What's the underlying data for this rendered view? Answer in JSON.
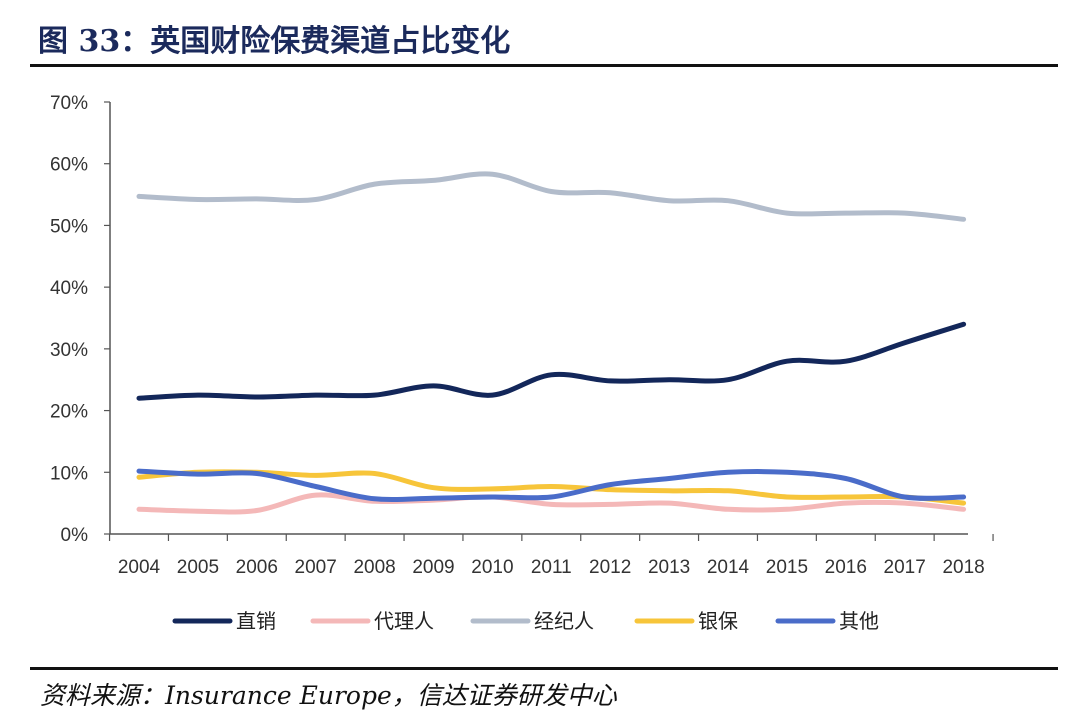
{
  "header": {
    "title": "图 33：英国财险保费渠道占比变化"
  },
  "footer": {
    "source": "资料来源：Insurance Europe，信达证券研发中心"
  },
  "chart_data": {
    "type": "line",
    "title": "",
    "xlabel": "",
    "ylabel": "",
    "x": [
      "2004",
      "2005",
      "2006",
      "2007",
      "2008",
      "2009",
      "2010",
      "2011",
      "2012",
      "2013",
      "2014",
      "2015",
      "2016",
      "2017",
      "2018"
    ],
    "ylim": [
      0,
      0.7
    ],
    "yticks": [
      "0%",
      "10%",
      "20%",
      "30%",
      "40%",
      "50%",
      "60%",
      "70%"
    ],
    "grid": false,
    "legend_position": "bottom",
    "series": [
      {
        "name": "直销",
        "color": "#13275a",
        "values": [
          0.22,
          0.225,
          0.222,
          0.225,
          0.225,
          0.24,
          0.225,
          0.258,
          0.248,
          0.25,
          0.25,
          0.28,
          0.28,
          0.31,
          0.34
        ]
      },
      {
        "name": "代理人",
        "color": "#f4b8b8",
        "values": [
          0.04,
          0.037,
          0.038,
          0.063,
          0.053,
          0.055,
          0.06,
          0.048,
          0.048,
          0.05,
          0.04,
          0.04,
          0.05,
          0.05,
          0.04
        ]
      },
      {
        "name": "经纪人",
        "color": "#b2bccb",
        "values": [
          0.547,
          0.542,
          0.543,
          0.542,
          0.567,
          0.573,
          0.583,
          0.555,
          0.553,
          0.54,
          0.54,
          0.52,
          0.52,
          0.52,
          0.51
        ]
      },
      {
        "name": "银保",
        "color": "#f7c53a",
        "values": [
          0.092,
          0.1,
          0.1,
          0.095,
          0.098,
          0.075,
          0.073,
          0.077,
          0.072,
          0.07,
          0.07,
          0.06,
          0.06,
          0.06,
          0.05
        ]
      },
      {
        "name": "其他",
        "color": "#4a6cc9",
        "values": [
          0.102,
          0.097,
          0.098,
          0.077,
          0.057,
          0.058,
          0.06,
          0.06,
          0.08,
          0.09,
          0.1,
          0.1,
          0.09,
          0.06,
          0.06
        ]
      }
    ]
  }
}
